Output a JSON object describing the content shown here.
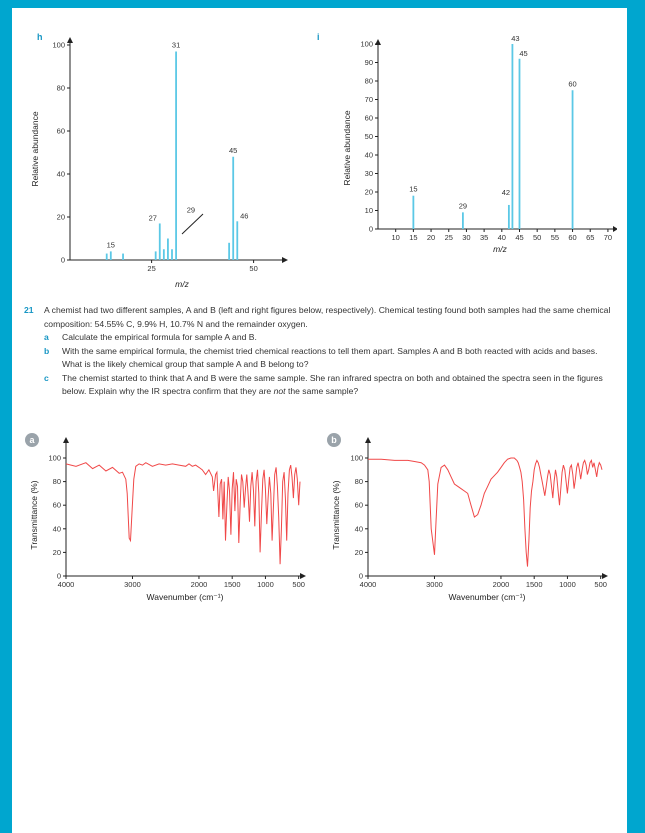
{
  "panels": {
    "h": {
      "label": "h",
      "ylabel": "Relative abundance",
      "xlabel": "m/z"
    },
    "i": {
      "label": "i",
      "ylabel": "Relative abundance",
      "xlabel": "m/z"
    },
    "a": {
      "label": "a",
      "ylabel": "Transmittance (%)",
      "xlabel": "Wavenumber (cm⁻¹)"
    },
    "b": {
      "label": "b",
      "ylabel": "Transmittance (%)",
      "xlabel": "Wavenumber (cm⁻¹)"
    }
  },
  "question": {
    "number": "21",
    "intro": "A chemist had two different samples, A and B (left and right figures below, respectively). Chemical testing found both samples had the same chemical composition: 54.55% C, 9.9% H, 10.7% N and the remainder oxygen.",
    "parts": [
      {
        "letter": "a",
        "text": "Calculate the empirical formula for sample A and B."
      },
      {
        "letter": "b",
        "text": "With the same empirical formula, the chemist tried chemical reactions to tell them apart. Samples A and B both reacted with acids and bases. What is the likely chemical group that sample A and B belong to?"
      },
      {
        "letter": "c",
        "text_before": "The chemist started to think that A and B were the same sample. She ran infrared spectra on both and obtained the spectra seen in the figures below. Explain why the IR spectra confirm that they are ",
        "text_em": "not",
        "text_after": " the same sample?"
      }
    ]
  },
  "chart_data": [
    {
      "type": "bar",
      "id": "h",
      "xlabel": "m/z",
      "ylabel": "Relative abundance",
      "ylim": [
        0,
        100
      ],
      "xlim": [
        5,
        55
      ],
      "yticks": [
        0,
        20,
        40,
        60,
        80,
        100
      ],
      "xticks": [
        25,
        50
      ],
      "color": "#5bc8e6",
      "x": [
        14,
        15,
        18,
        26,
        27,
        28,
        29,
        30,
        31,
        44,
        45,
        46
      ],
      "values": [
        3,
        4,
        3,
        4,
        17,
        5,
        10,
        5,
        97,
        8,
        48,
        18
      ],
      "labels": [
        {
          "x": 15,
          "text": "15"
        },
        {
          "x": 27,
          "text": "27"
        },
        {
          "x": 29,
          "text": "29"
        },
        {
          "x": 31,
          "text": "31"
        },
        {
          "x": 45,
          "text": "45"
        },
        {
          "x": 46,
          "text": "46"
        }
      ]
    },
    {
      "type": "bar",
      "id": "i",
      "xlabel": "m/z",
      "ylabel": "Relative abundance",
      "ylim": [
        0,
        100
      ],
      "xlim": [
        5,
        72
      ],
      "yticks": [
        0,
        10,
        20,
        30,
        40,
        50,
        60,
        70,
        80,
        90,
        100
      ],
      "xticks": [
        10,
        15,
        20,
        25,
        30,
        35,
        40,
        45,
        50,
        55,
        60,
        65,
        70
      ],
      "color": "#5bc8e6",
      "x": [
        15,
        29,
        42,
        43,
        45,
        60
      ],
      "values": [
        18,
        9,
        13,
        100,
        92,
        75
      ],
      "labels": [
        {
          "x": 15,
          "text": "15"
        },
        {
          "x": 29,
          "text": "29"
        },
        {
          "x": 42,
          "text": "42"
        },
        {
          "x": 43,
          "text": "43"
        },
        {
          "x": 45,
          "text": "45"
        },
        {
          "x": 60,
          "text": "60"
        }
      ]
    },
    {
      "type": "line",
      "id": "a",
      "xlabel": "Wavenumber (cm⁻¹)",
      "ylabel": "Transmittance (%)",
      "xlim": [
        4000,
        450
      ],
      "ylim": [
        0,
        100
      ],
      "xticks": [
        4000,
        3000,
        2000,
        1500,
        1000,
        500
      ],
      "yticks": [
        0,
        20,
        40,
        60,
        80,
        100
      ],
      "color": "#f04848",
      "x": [
        4000,
        3850,
        3700,
        3600,
        3500,
        3400,
        3300,
        3200,
        3150,
        3100,
        3080,
        3050,
        3030,
        3000,
        2980,
        2950,
        2900,
        2850,
        2800,
        2700,
        2600,
        2500,
        2400,
        2300,
        2200,
        2150,
        2100,
        2050,
        2000,
        1950,
        1900,
        1850,
        1800,
        1780,
        1750,
        1730,
        1700,
        1680,
        1660,
        1640,
        1620,
        1600,
        1580,
        1560,
        1540,
        1520,
        1500,
        1480,
        1460,
        1440,
        1420,
        1400,
        1380,
        1360,
        1340,
        1320,
        1300,
        1280,
        1260,
        1240,
        1220,
        1200,
        1180,
        1160,
        1140,
        1120,
        1100,
        1080,
        1060,
        1040,
        1020,
        1000,
        980,
        960,
        940,
        920,
        900,
        880,
        860,
        840,
        820,
        800,
        780,
        760,
        740,
        720,
        700,
        680,
        660,
        640,
        620,
        600,
        580,
        560,
        540,
        520,
        500,
        480
      ],
      "y": [
        95,
        93,
        96,
        91,
        94,
        89,
        92,
        87,
        88,
        82,
        70,
        32,
        30,
        62,
        82,
        93,
        95,
        94,
        96,
        93,
        95,
        94,
        95,
        94,
        93,
        95,
        93,
        94,
        92,
        90,
        86,
        90,
        84,
        72,
        86,
        88,
        50,
        78,
        82,
        48,
        80,
        30,
        60,
        84,
        72,
        35,
        74,
        88,
        55,
        82,
        76,
        28,
        62,
        86,
        80,
        58,
        74,
        86,
        68,
        46,
        76,
        88,
        72,
        42,
        80,
        90,
        70,
        20,
        52,
        82,
        90,
        74,
        44,
        66,
        84,
        70,
        30,
        58,
        86,
        92,
        76,
        50,
        10,
        40,
        80,
        88,
        66,
        30,
        70,
        90,
        94,
        84,
        66,
        86,
        92,
        82,
        60,
        80
      ]
    },
    {
      "type": "line",
      "id": "b",
      "xlabel": "Wavenumber (cm⁻¹)",
      "ylabel": "Transmittance (%)",
      "xlim": [
        4000,
        450
      ],
      "ylim": [
        0,
        100
      ],
      "xticks": [
        4000,
        3000,
        2000,
        1500,
        1000,
        500
      ],
      "yticks": [
        0,
        20,
        40,
        60,
        80,
        100
      ],
      "color": "#f04848",
      "x": [
        4000,
        3800,
        3600,
        3400,
        3300,
        3200,
        3150,
        3100,
        3080,
        3050,
        3000,
        2980,
        2950,
        2900,
        2850,
        2800,
        2750,
        2700,
        2650,
        2600,
        2550,
        2500,
        2450,
        2400,
        2350,
        2300,
        2250,
        2200,
        2150,
        2100,
        2050,
        2000,
        1950,
        1900,
        1850,
        1800,
        1780,
        1760,
        1740,
        1720,
        1700,
        1680,
        1660,
        1640,
        1620,
        1600,
        1580,
        1560,
        1540,
        1520,
        1500,
        1480,
        1460,
        1440,
        1420,
        1400,
        1380,
        1360,
        1340,
        1320,
        1300,
        1280,
        1260,
        1240,
        1220,
        1200,
        1180,
        1160,
        1140,
        1120,
        1100,
        1080,
        1060,
        1040,
        1020,
        1000,
        980,
        960,
        940,
        920,
        900,
        880,
        860,
        840,
        820,
        800,
        780,
        760,
        740,
        720,
        700,
        680,
        660,
        640,
        620,
        600,
        580,
        560,
        540,
        520,
        500,
        480
      ],
      "y": [
        99,
        99,
        98,
        98,
        97,
        96,
        94,
        90,
        80,
        40,
        18,
        42,
        78,
        92,
        94,
        90,
        84,
        78,
        76,
        74,
        72,
        70,
        60,
        50,
        52,
        60,
        70,
        76,
        82,
        85,
        88,
        92,
        96,
        99,
        100,
        100,
        99,
        98,
        96,
        92,
        88,
        80,
        65,
        40,
        20,
        8,
        30,
        58,
        72,
        80,
        90,
        95,
        98,
        96,
        92,
        86,
        80,
        74,
        68,
        76,
        84,
        90,
        86,
        76,
        66,
        80,
        90,
        84,
        72,
        60,
        74,
        88,
        94,
        90,
        80,
        70,
        82,
        92,
        94,
        86,
        74,
        82,
        92,
        96,
        90,
        82,
        90,
        96,
        98,
        94,
        86,
        90,
        96,
        98,
        92,
        96,
        90,
        84,
        92,
        96,
        94,
        90
      ]
    }
  ]
}
